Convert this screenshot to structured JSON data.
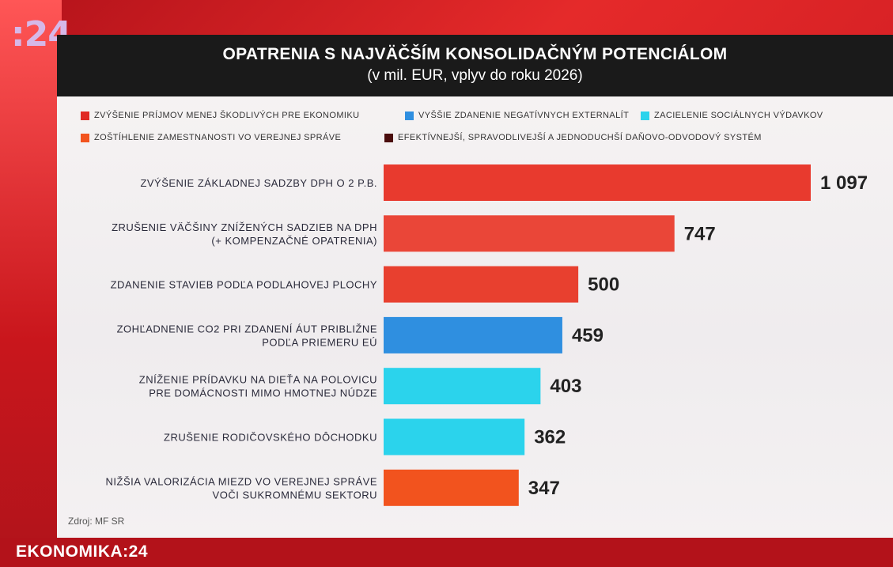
{
  "channel": {
    "logo": ":24",
    "program": "EKONOMIKA:24"
  },
  "source": "Zdroj: MF SR",
  "colors": {
    "red": "#e83a2e",
    "blue": "#2f8fe0",
    "cyan": "#2bd3ec",
    "orange": "#f2531e",
    "darkred": "#4a0d0d"
  },
  "legend": [
    {
      "label": "ZVÝŠENIE PRÍJMOV MENEJ ŠKODLIVÝCH PRE EKONOMIKU",
      "color": "#e02a24"
    },
    {
      "label": "VYŠŠIE ZDANENIE NEGATÍVNYCH EXTERNALÍT",
      "color": "#2f8fe0"
    },
    {
      "label": "ZACIELENIE SOCIÁLNYCH VÝDAVKOV",
      "color": "#2bd3ec"
    },
    {
      "label": "ZOŠTÍHLENIE ZAMESTNANOSTI VO VEREJNEJ SPRÁVE",
      "color": "#f2531e"
    },
    {
      "label": "EFEKTÍVNEJŠÍ, SPRAVODLIVEJŠÍ A JEDNODUCHŠÍ DAŇOVO-ODVODOVÝ SYSTÉM",
      "color": "#4a0d0d"
    }
  ],
  "chart_data": {
    "type": "bar",
    "orientation": "horizontal",
    "title": "OPATRENIA S NAJVÄČŠÍM KONSOLIDAČNÝM POTENCIÁLOM",
    "subtitle": "(v mil. EUR, vplyv do roku 2026)",
    "categories": [
      [
        "ZVÝŠENIE ZÁKLADNEJ SADZBY DPH O 2 P.B."
      ],
      [
        "ZRUŠENIE VÄČŠINY ZNÍŽENÝCH SADZIEB NA DPH",
        "(+ KOMPENZAČNÉ OPATRENIA)"
      ],
      [
        "ZDANENIE STAVIEB PODĽA PODLAHOVEJ PLOCHY"
      ],
      [
        "ZOHĽADNENIE CO2 PRI ZDANENÍ ÁUT PRIBLIŽNE",
        "PODĽA PRIEMERU EÚ"
      ],
      [
        "ZNÍŽENIE PRÍDAVKU NA DIEŤA NA POLOVICU",
        "PRE DOMÁCNOSTI MIMO HMOTNEJ NÚDZE"
      ],
      [
        "ZRUŠENIE RODIČOVSKÉHO DÔCHODKU"
      ],
      [
        "NIŽŠIA VALORIZÁCIA MIEZD VO VEREJNEJ SPRÁVE",
        "VOČI SUKROMNÉMU SEKTORU"
      ]
    ],
    "values": [
      1097,
      747,
      500,
      459,
      403,
      362,
      347
    ],
    "value_labels": [
      "1 097",
      "747",
      "500",
      "459",
      "403",
      "362",
      "347"
    ],
    "bar_colors": [
      "#e83a2e",
      "#ea4638",
      "#e8402f",
      "#2f8fe0",
      "#2bd3ec",
      "#2bd3ec",
      "#f2531e"
    ],
    "xlim": [
      0,
      1097
    ],
    "grid": false
  }
}
